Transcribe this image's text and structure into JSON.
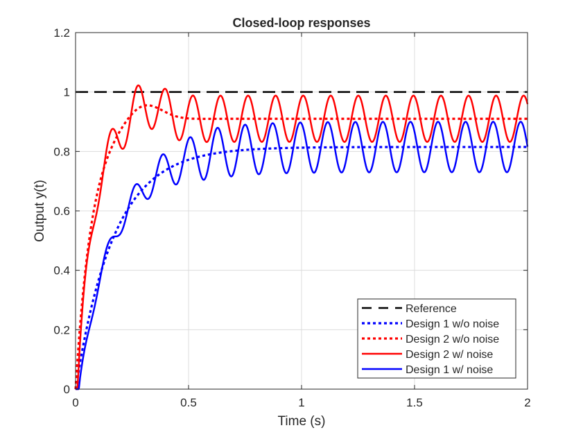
{
  "chart_data": {
    "type": "line",
    "title": "Closed-loop responses",
    "xlabel": "Time (s)",
    "ylabel": "Output y(t)",
    "xlim": [
      0,
      2
    ],
    "ylim": [
      0,
      1.2
    ],
    "xticks": [
      "0",
      "0.5",
      "1",
      "1.5",
      "2"
    ],
    "yticks": [
      "0",
      "0.2",
      "0.4",
      "0.6",
      "0.8",
      "1",
      "1.2"
    ],
    "grid": true,
    "legend_position": "bottom-right",
    "x": [
      0,
      0.02,
      0.04,
      0.06,
      0.08,
      0.1,
      0.12,
      0.14,
      0.16,
      0.18,
      0.2,
      0.22,
      0.24,
      0.26,
      0.28,
      0.3,
      0.32,
      0.34,
      0.36,
      0.38,
      0.4,
      0.42,
      0.44,
      0.46,
      0.48,
      0.5,
      0.52,
      0.54,
      0.56,
      0.58,
      0.6,
      0.62,
      0.64,
      0.66,
      0.68,
      0.7,
      0.72,
      0.74,
      0.76,
      0.78,
      0.8,
      0.82,
      0.84,
      0.86,
      0.88,
      0.9,
      0.92,
      0.94,
      0.96,
      0.98,
      1,
      1.02,
      1.04,
      1.06,
      1.08,
      1.1,
      1.12,
      1.14,
      1.16,
      1.18,
      1.2,
      1.22,
      1.24,
      1.26,
      1.28,
      1.3,
      1.32,
      1.34,
      1.36,
      1.38,
      1.4,
      1.42,
      1.44,
      1.46,
      1.48,
      1.5,
      1.52,
      1.54,
      1.56,
      1.58,
      1.6,
      1.62,
      1.64,
      1.66,
      1.68,
      1.7,
      1.72,
      1.74,
      1.76,
      1.78,
      1.8,
      1.82,
      1.84,
      1.86,
      1.88,
      1.9,
      1.92,
      1.94,
      1.96,
      1.98,
      2
    ],
    "series": [
      {
        "name": "Reference",
        "color": "#000000",
        "style": "dashed",
        "noise": false,
        "values": "constant",
        "level": 1
      },
      {
        "name": "Design 1 w/o noise",
        "color": "#0000ff",
        "style": "dotted",
        "noise": false,
        "final": 0.815,
        "tau": 0.17
      },
      {
        "name": "Design 2 w/o noise",
        "color": "#ff0000",
        "style": "dotted",
        "noise": false,
        "final": 0.91,
        "peak": 0.95
      },
      {
        "name": "Design 2 w/ noise",
        "color": "#ff0000",
        "style": "solid",
        "noise": true,
        "final": 0.91,
        "amplitude": 0.078
      },
      {
        "name": "Design 1 w/ noise",
        "color": "#0000ff",
        "style": "solid",
        "noise": true,
        "final": 0.815,
        "amplitude": 0.085
      }
    ],
    "noise_frequency_hz": 8.2
  }
}
